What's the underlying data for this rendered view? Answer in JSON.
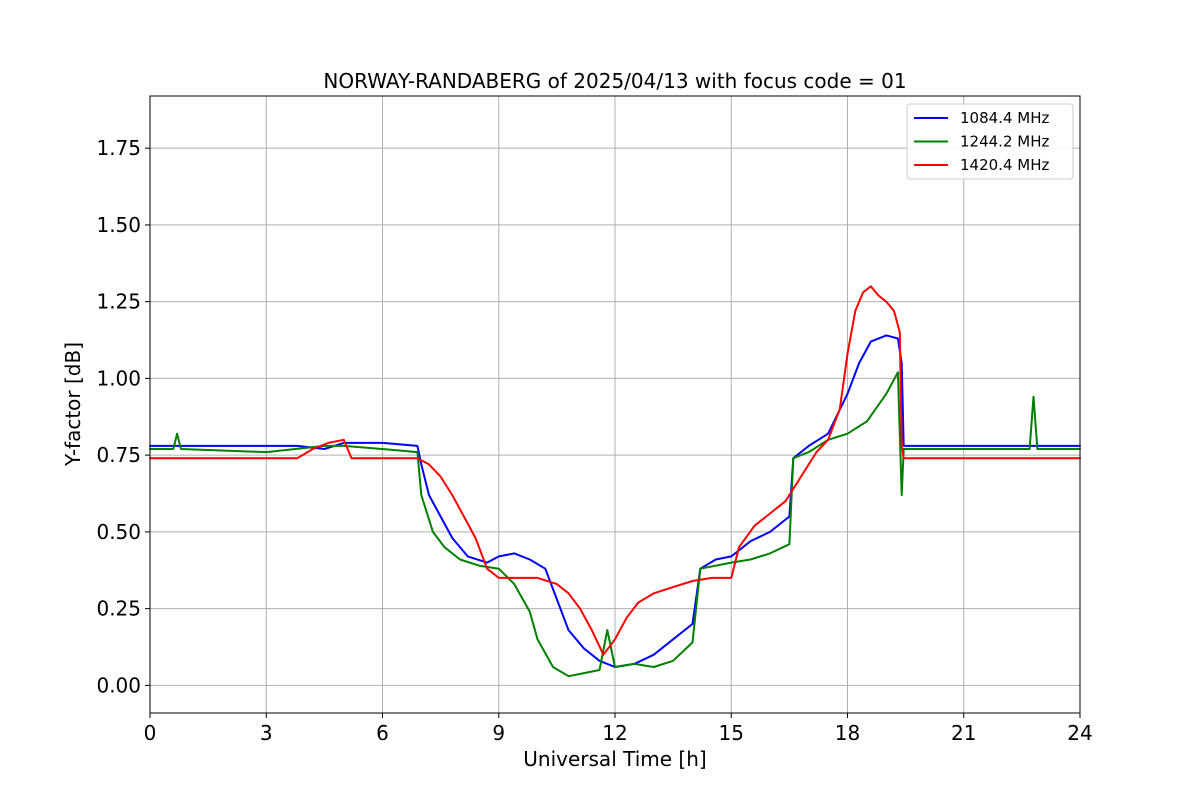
{
  "chart_data": {
    "type": "line",
    "title": "NORWAY-RANDABERG of 2025/04/13 with focus code = 01",
    "xlabel": "Universal Time [h]",
    "ylabel": "Y-factor [dB]",
    "xlim": [
      0,
      24
    ],
    "ylim": [
      -0.09,
      1.92
    ],
    "xticks": [
      0,
      3,
      6,
      9,
      12,
      15,
      18,
      21,
      24
    ],
    "yticks": [
      0.0,
      0.25,
      0.5,
      0.75,
      1.0,
      1.25,
      1.5,
      1.75
    ],
    "ytick_labels": [
      "0.00",
      "0.25",
      "0.50",
      "0.75",
      "1.00",
      "1.25",
      "1.50",
      "1.75"
    ],
    "grid": true,
    "legend_position": "top-right",
    "series": [
      {
        "name": "1084.4 MHz",
        "color": "#0000ff",
        "x": [
          0,
          3.8,
          4.5,
          5.0,
          6.0,
          6.9,
          7.0,
          7.2,
          7.5,
          7.8,
          8.2,
          8.7,
          9.0,
          9.4,
          9.8,
          10.2,
          10.5,
          10.8,
          11.2,
          11.6,
          12.0,
          12.5,
          13.0,
          13.5,
          14.0,
          14.2,
          14.6,
          15.0,
          15.2,
          15.5,
          16.0,
          16.5,
          16.6,
          17.0,
          17.5,
          18.0,
          18.3,
          18.6,
          19.0,
          19.3,
          19.4,
          19.45,
          20.0,
          22.0,
          24.0
        ],
        "y": [
          0.78,
          0.78,
          0.77,
          0.79,
          0.79,
          0.78,
          0.72,
          0.62,
          0.55,
          0.48,
          0.42,
          0.4,
          0.42,
          0.43,
          0.41,
          0.38,
          0.28,
          0.18,
          0.12,
          0.08,
          0.06,
          0.07,
          0.1,
          0.15,
          0.2,
          0.38,
          0.41,
          0.42,
          0.44,
          0.47,
          0.5,
          0.55,
          0.74,
          0.78,
          0.82,
          0.95,
          1.05,
          1.12,
          1.14,
          1.13,
          1.05,
          0.78,
          0.78,
          0.78,
          0.78
        ]
      },
      {
        "name": "1244.2 MHz",
        "color": "#008000",
        "x": [
          0,
          0.6,
          0.7,
          0.8,
          3.0,
          4.5,
          5.0,
          6.0,
          6.9,
          7.0,
          7.3,
          7.6,
          8.0,
          8.5,
          9.0,
          9.4,
          9.8,
          10.0,
          10.4,
          10.8,
          11.2,
          11.6,
          11.8,
          12.0,
          12.5,
          13.0,
          13.5,
          14.0,
          14.2,
          15.0,
          15.5,
          16.0,
          16.5,
          16.6,
          17.0,
          17.5,
          18.0,
          18.5,
          19.0,
          19.3,
          19.4,
          19.45,
          20.0,
          22.7,
          22.8,
          22.9,
          24.0
        ],
        "y": [
          0.77,
          0.77,
          0.82,
          0.77,
          0.76,
          0.78,
          0.78,
          0.77,
          0.76,
          0.62,
          0.5,
          0.45,
          0.41,
          0.39,
          0.38,
          0.33,
          0.24,
          0.15,
          0.06,
          0.03,
          0.04,
          0.05,
          0.18,
          0.06,
          0.07,
          0.06,
          0.08,
          0.14,
          0.38,
          0.4,
          0.41,
          0.43,
          0.46,
          0.74,
          0.76,
          0.8,
          0.82,
          0.86,
          0.95,
          1.02,
          0.62,
          0.77,
          0.77,
          0.77,
          0.94,
          0.77,
          0.77
        ]
      },
      {
        "name": "1420.4 MHz",
        "color": "#ff0000",
        "x": [
          0,
          3.8,
          4.2,
          4.6,
          5.0,
          5.2,
          6.0,
          6.9,
          7.2,
          7.5,
          7.8,
          8.1,
          8.4,
          8.7,
          9.0,
          9.5,
          10.0,
          10.5,
          10.8,
          11.1,
          11.4,
          11.7,
          12.0,
          12.3,
          12.6,
          13.0,
          13.5,
          14.0,
          14.5,
          15.0,
          15.2,
          15.6,
          16.0,
          16.4,
          16.8,
          17.2,
          17.5,
          17.8,
          18.0,
          18.2,
          18.4,
          18.6,
          18.8,
          19.0,
          19.2,
          19.35,
          19.4,
          19.45,
          20.0,
          22.0,
          24.0
        ],
        "y": [
          0.74,
          0.74,
          0.77,
          0.79,
          0.8,
          0.74,
          0.74,
          0.74,
          0.72,
          0.68,
          0.62,
          0.55,
          0.48,
          0.38,
          0.35,
          0.35,
          0.35,
          0.33,
          0.3,
          0.25,
          0.18,
          0.1,
          0.15,
          0.22,
          0.27,
          0.3,
          0.32,
          0.34,
          0.35,
          0.35,
          0.45,
          0.52,
          0.56,
          0.6,
          0.68,
          0.76,
          0.8,
          0.9,
          1.08,
          1.22,
          1.28,
          1.3,
          1.27,
          1.25,
          1.22,
          1.15,
          0.78,
          0.74,
          0.74,
          0.74,
          0.74
        ]
      }
    ]
  }
}
